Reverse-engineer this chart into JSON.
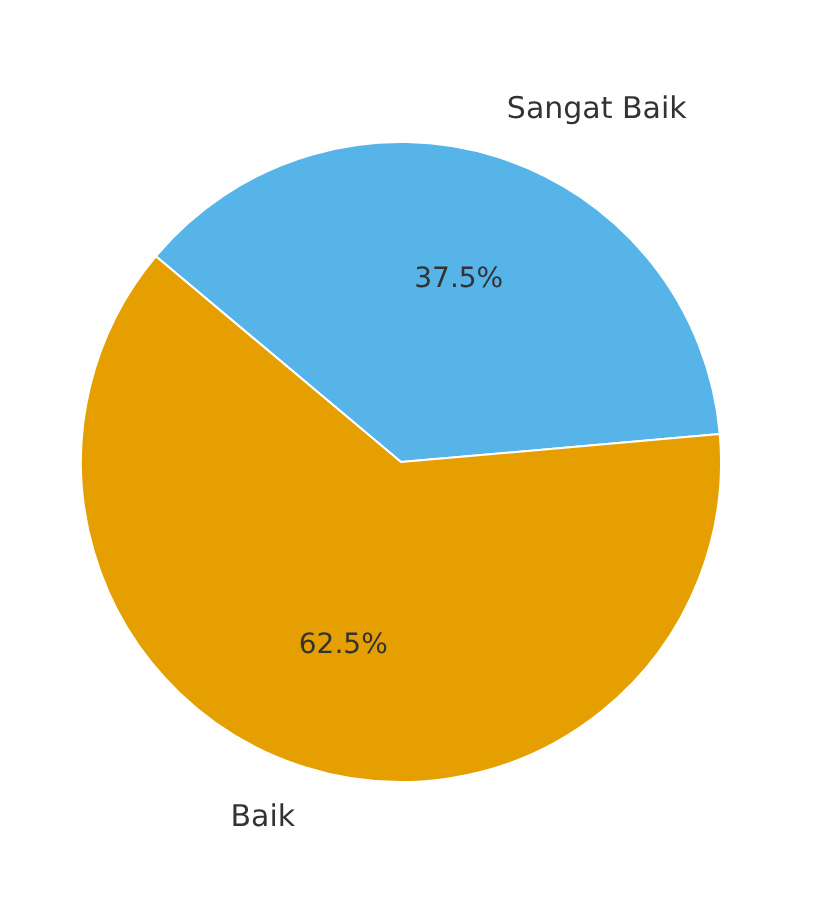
{
  "chart_data": {
    "type": "pie",
    "categories": [
      "Sangat Baik",
      "Baik"
    ],
    "values": [
      37.5,
      62.5
    ],
    "colors": [
      "#56b4e9",
      "#e69f00"
    ],
    "value_labels": [
      "37.5%",
      "62.5%"
    ],
    "legend": false
  }
}
